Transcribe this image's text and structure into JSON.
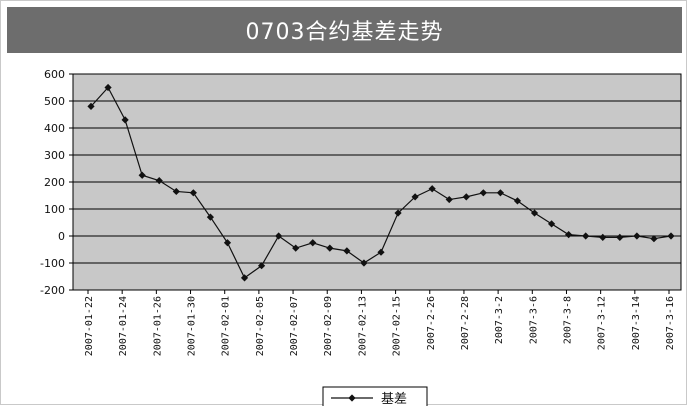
{
  "title": "0703合约基差走势",
  "colors": {
    "title_bg": "#6d6d6d",
    "title_text": "#ffffff",
    "plot_bg": "#c8c8c8",
    "line": "#111111",
    "grid": "#000000"
  },
  "chart_data": {
    "type": "line",
    "title": "",
    "xlabel": "",
    "ylabel": "",
    "ylim": [
      -200,
      600
    ],
    "yticks": [
      600,
      500,
      400,
      300,
      200,
      100,
      0,
      -100,
      -200
    ],
    "grid": true,
    "legend_position": "bottom",
    "x_tick_labels": [
      "2007-01-22",
      "2007-01-24",
      "2007-01-26",
      "2007-01-30",
      "2007-02-01",
      "2007-02-05",
      "2007-02-07",
      "2007-02-09",
      "2007-02-13",
      "2007-02-15",
      "2007-2-26",
      "2007-2-28",
      "2007-3-2",
      "2007-3-6",
      "2007-3-8",
      "2007-3-12",
      "2007-3-14",
      "2007-3-16"
    ],
    "series": [
      {
        "name": "基差",
        "values": [
          480,
          550,
          430,
          225,
          205,
          165,
          160,
          70,
          -25,
          -155,
          -110,
          0,
          -45,
          -25,
          -45,
          -55,
          -100,
          -60,
          85,
          145,
          175,
          135,
          145,
          160,
          160,
          130,
          85,
          45,
          5,
          0,
          -5,
          -5,
          0,
          -10,
          0
        ]
      }
    ]
  }
}
